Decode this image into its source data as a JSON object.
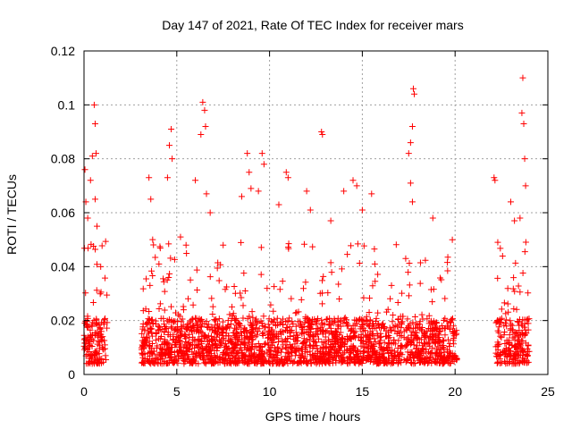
{
  "chart_data": {
    "type": "scatter",
    "title": "Day 147 of 2021, Rate Of TEC Index for receiver mars",
    "xlabel": "GPS time / hours",
    "ylabel": "ROTI / TECUs",
    "xlim": [
      0,
      25
    ],
    "ylim": [
      0,
      0.12
    ],
    "xticks": [
      0,
      5,
      10,
      15,
      20,
      25
    ],
    "xtick_labels": [
      "0",
      "5",
      "10",
      "15",
      "20",
      "25"
    ],
    "yticks": [
      0,
      0.02,
      0.04,
      0.06,
      0.08,
      0.1,
      0.12
    ],
    "ytick_labels": [
      "0",
      "0.02",
      "0.04",
      "0.06",
      "0.08",
      "0.1",
      "0.12"
    ],
    "grid": true,
    "marker": "+",
    "color": "#ff0000",
    "series": [
      {
        "name": "ROTI",
        "dense_band": {
          "segments": [
            [
              0.0,
              1.25
            ],
            [
              3.1,
              20.1
            ],
            [
              22.2,
              24.0
            ]
          ],
          "typical_range": [
            0.004,
            0.03
          ]
        },
        "notable_points": [
          [
            0.05,
            0.076
          ],
          [
            0.1,
            0.064
          ],
          [
            0.2,
            0.058
          ],
          [
            0.35,
            0.072
          ],
          [
            0.45,
            0.081
          ],
          [
            0.55,
            0.1
          ],
          [
            0.6,
            0.093
          ],
          [
            0.65,
            0.082
          ],
          [
            0.6,
            0.065
          ],
          [
            0.7,
            0.055
          ],
          [
            0.9,
            0.04
          ],
          [
            3.5,
            0.073
          ],
          [
            3.6,
            0.065
          ],
          [
            3.7,
            0.05
          ],
          [
            4.5,
            0.073
          ],
          [
            4.6,
            0.085
          ],
          [
            4.7,
            0.091
          ],
          [
            4.75,
            0.08
          ],
          [
            5.2,
            0.051
          ],
          [
            5.5,
            0.048
          ],
          [
            6.0,
            0.072
          ],
          [
            6.3,
            0.089
          ],
          [
            6.4,
            0.101
          ],
          [
            6.5,
            0.098
          ],
          [
            6.55,
            0.092
          ],
          [
            6.6,
            0.067
          ],
          [
            6.8,
            0.06
          ],
          [
            7.5,
            0.048
          ],
          [
            8.5,
            0.066
          ],
          [
            8.8,
            0.082
          ],
          [
            8.9,
            0.075
          ],
          [
            9.0,
            0.069
          ],
          [
            9.4,
            0.068
          ],
          [
            9.6,
            0.082
          ],
          [
            9.7,
            0.078
          ],
          [
            10.5,
            0.063
          ],
          [
            10.9,
            0.075
          ],
          [
            11.0,
            0.073
          ],
          [
            12.0,
            0.068
          ],
          [
            12.2,
            0.061
          ],
          [
            12.8,
            0.09
          ],
          [
            12.85,
            0.089
          ],
          [
            13.3,
            0.057
          ],
          [
            14.0,
            0.068
          ],
          [
            14.5,
            0.072
          ],
          [
            14.7,
            0.07
          ],
          [
            15.0,
            0.061
          ],
          [
            15.5,
            0.067
          ],
          [
            17.5,
            0.082
          ],
          [
            17.6,
            0.086
          ],
          [
            17.7,
            0.092
          ],
          [
            17.75,
            0.106
          ],
          [
            17.8,
            0.104
          ],
          [
            17.6,
            0.071
          ],
          [
            17.7,
            0.064
          ],
          [
            18.8,
            0.058
          ],
          [
            22.1,
            0.073
          ],
          [
            22.15,
            0.072
          ],
          [
            22.3,
            0.049
          ],
          [
            23.0,
            0.064
          ],
          [
            23.2,
            0.057
          ],
          [
            23.5,
            0.058
          ],
          [
            23.6,
            0.097
          ],
          [
            23.65,
            0.11
          ],
          [
            23.7,
            0.093
          ],
          [
            23.75,
            0.08
          ],
          [
            23.8,
            0.07
          ]
        ]
      }
    ]
  }
}
